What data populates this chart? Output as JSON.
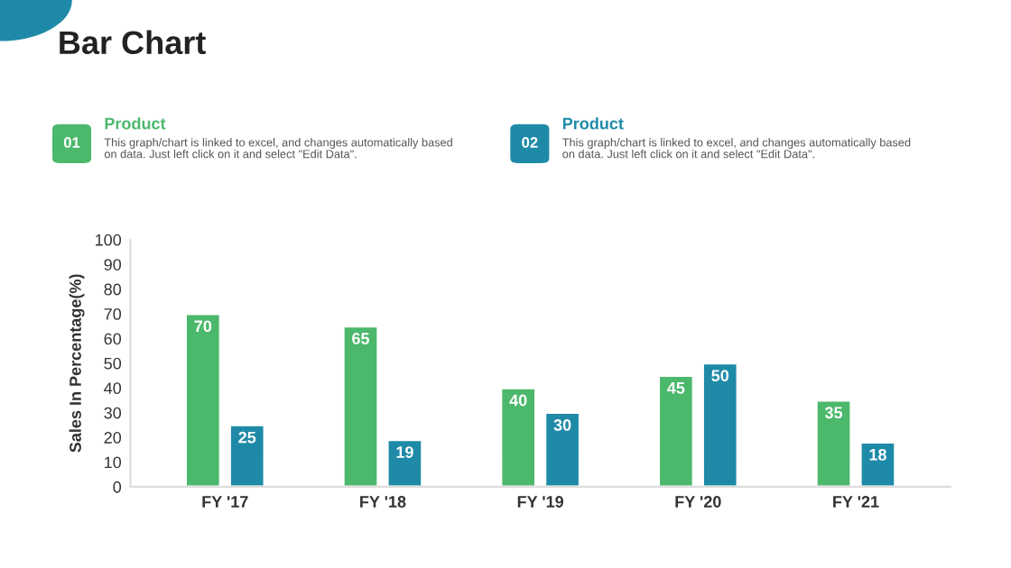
{
  "chart_data": {
    "type": "bar",
    "title": "Bar Chart",
    "ylabel": "Sales In Percentage(%)",
    "categories": [
      "FY '17",
      "FY '18",
      "FY '19",
      "FY '20",
      "FY '21"
    ],
    "series": [
      {
        "name": "Product",
        "color": "#4cb86c",
        "values": [
          70,
          65,
          40,
          45,
          35
        ]
      },
      {
        "name": "Product",
        "color": "#1f8aa8",
        "values": [
          25,
          19,
          30,
          50,
          18
        ]
      }
    ],
    "annotations": [
      "01",
      "This graph/chart is linked to excel, and changes automatically based\non data. Just left click on it and select \"Edit Data\".",
      "02",
      "This graph/chart is linked to excel, and changes automatically based\non data. Just left click on it and select \"Edit Data\"."
    ],
    "ylim": [
      0,
      100
    ],
    "yticks": [
      0,
      10,
      20,
      30,
      40,
      50,
      60,
      70,
      80,
      90,
      100
    ],
    "data_labels": true,
    "grid": false,
    "legend": "top"
  }
}
